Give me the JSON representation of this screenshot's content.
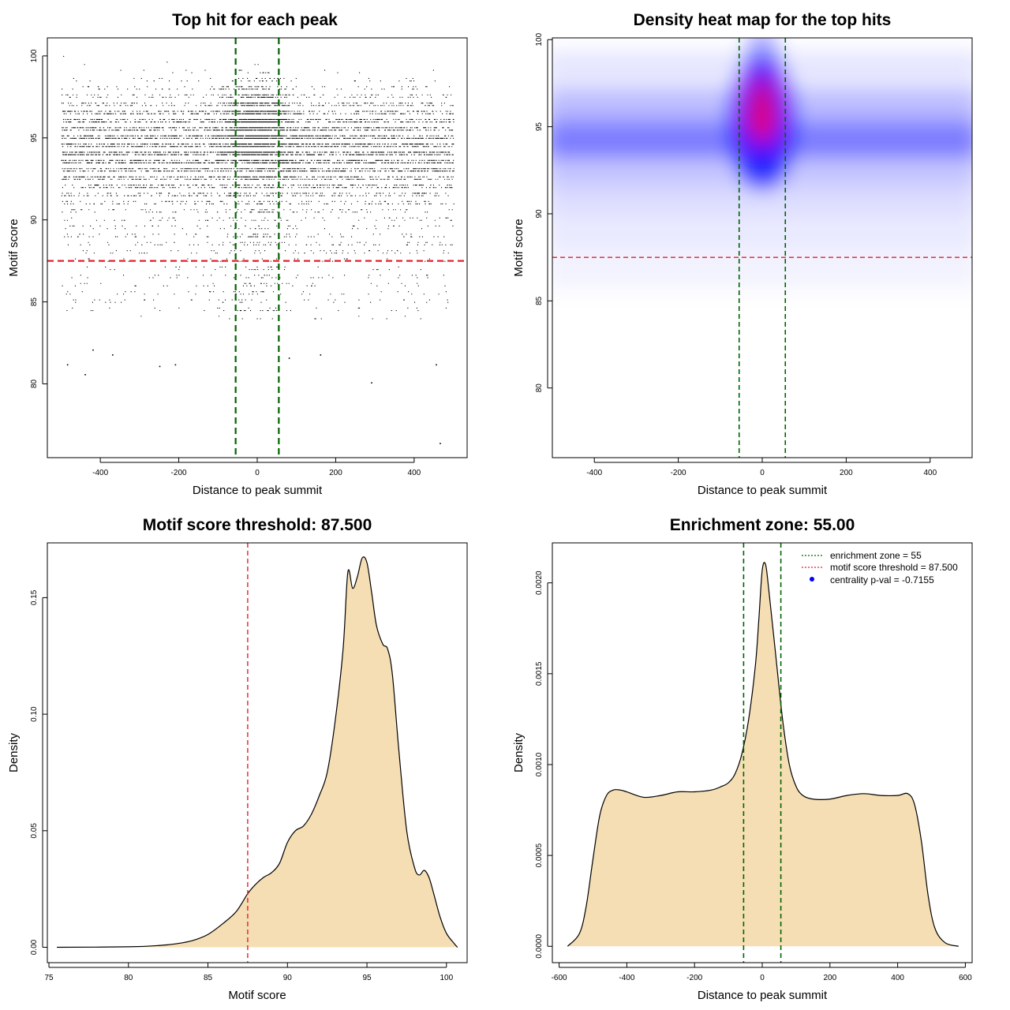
{
  "colors": {
    "density_fill": "#F5DEB3",
    "zone_line": "#006400",
    "threshold_line": "#E0202A",
    "point": "#000000",
    "heat_low": "#0000FF",
    "heat_high": "#FF0000"
  },
  "chart_data": [
    {
      "id": "scatter",
      "type": "scatter",
      "title": "Top hit for each peak",
      "xlabel": "Distance to peak summit",
      "ylabel": "Motif score",
      "xlim": [
        -535,
        535
      ],
      "ylim": [
        75.5,
        101.1
      ],
      "xticks": [
        -400,
        -200,
        0,
        200,
        400
      ],
      "xtick_labels": [
        "-400",
        "-200",
        "0",
        "200",
        "400"
      ],
      "yticks": [
        80,
        85,
        90,
        95,
        100
      ],
      "ytick_labels": [
        "80",
        "85",
        "90",
        "95",
        "100"
      ],
      "zone_lines_x": [
        -55,
        55
      ],
      "threshold_y": 87.5,
      "x_range": [
        -500,
        500
      ],
      "score_range": [
        76.2,
        100
      ],
      "sample_outliers": [
        {
          "x": -485,
          "y": 81.2
        },
        {
          "x": -420,
          "y": 82.1
        },
        {
          "x": -370,
          "y": 81.8
        },
        {
          "x": -440,
          "y": 80.6
        },
        {
          "x": -250,
          "y": 81.1
        },
        {
          "x": -210,
          "y": 81.2
        },
        {
          "x": 290,
          "y": 80.1
        },
        {
          "x": 455,
          "y": 81.2
        },
        {
          "x": 465,
          "y": 76.4
        },
        {
          "x": 80,
          "y": 81.6
        },
        {
          "x": 160,
          "y": 81.8
        }
      ]
    },
    {
      "id": "heatmap",
      "type": "heatmap",
      "title": "Density heat map for the top hits",
      "xlabel": "Distance to peak summit",
      "ylabel": "Motif score",
      "xlim": [
        -500,
        500
      ],
      "ylim": [
        76,
        100.1
      ],
      "xticks": [
        -400,
        -200,
        0,
        200,
        400
      ],
      "xtick_labels": [
        "-400",
        "-200",
        "0",
        "200",
        "400"
      ],
      "yticks": [
        80,
        85,
        90,
        95,
        100
      ],
      "ytick_labels": [
        "80",
        "85",
        "90",
        "95",
        "100"
      ],
      "zone_lines_x": [
        -55,
        55
      ],
      "threshold_y": 87.5,
      "hotspot": {
        "x": 0,
        "y": 95.2
      }
    },
    {
      "id": "score_density",
      "type": "area",
      "title": "Motif score threshold: 87.500",
      "xlabel": "Motif score",
      "ylabel": "Density",
      "xlim": [
        74.9,
        101.3
      ],
      "ylim": [
        -0.0066,
        0.1735
      ],
      "xticks": [
        75,
        80,
        85,
        90,
        95,
        100
      ],
      "xtick_labels": [
        "75",
        "80",
        "85",
        "90",
        "95",
        "100"
      ],
      "yticks": [
        0,
        0.05,
        0.1,
        0.15
      ],
      "ytick_labels": [
        "0.00",
        "0.05",
        "0.10",
        "0.15"
      ],
      "threshold_x": 87.5,
      "x": [
        75.5,
        80,
        82,
        83,
        84,
        85,
        86,
        86.8,
        87.5,
        88,
        88.5,
        89,
        89.5,
        90,
        90.5,
        91,
        91.5,
        92,
        92.5,
        93,
        93.5,
        93.8,
        94.1,
        94.4,
        94.7,
        95,
        95.3,
        95.6,
        96,
        96.3,
        96.6,
        97,
        97.5,
        98,
        98.3,
        98.6,
        98.9,
        99.2,
        99.6,
        100,
        100.5,
        100.7
      ],
      "y": [
        0,
        0.0002,
        0.0008,
        0.0015,
        0.0028,
        0.0055,
        0.0105,
        0.0155,
        0.023,
        0.027,
        0.03,
        0.032,
        0.036,
        0.045,
        0.05,
        0.052,
        0.057,
        0.065,
        0.075,
        0.097,
        0.128,
        0.161,
        0.154,
        0.159,
        0.167,
        0.165,
        0.152,
        0.138,
        0.13,
        0.128,
        0.117,
        0.085,
        0.05,
        0.034,
        0.031,
        0.033,
        0.03,
        0.023,
        0.013,
        0.006,
        0.0015,
        0
      ]
    },
    {
      "id": "distance_density",
      "type": "area",
      "title": "Enrichment zone: 55.00",
      "xlabel": "Distance to peak summit",
      "ylabel": "Density",
      "xlim": [
        -620,
        620
      ],
      "ylim": [
        -9e-05,
        0.00222
      ],
      "xticks": [
        -600,
        -400,
        -200,
        0,
        200,
        400,
        600
      ],
      "xtick_labels": [
        "-600",
        "-400",
        "-200",
        "0",
        "200",
        "400",
        "600"
      ],
      "yticks": [
        0,
        0.0005,
        0.001,
        0.0015,
        0.002
      ],
      "ytick_labels": [
        "0.0000",
        "0.0005",
        "0.0010",
        "0.0015",
        "0.0020"
      ],
      "zone_lines_x": [
        -55,
        55
      ],
      "x": [
        -575,
        -540,
        -520,
        -500,
        -480,
        -460,
        -440,
        -420,
        -400,
        -350,
        -300,
        -250,
        -200,
        -150,
        -120,
        -100,
        -80,
        -60,
        -40,
        -20,
        -10,
        0,
        10,
        20,
        40,
        60,
        80,
        100,
        120,
        150,
        200,
        250,
        300,
        350,
        400,
        430,
        450,
        470,
        490,
        510,
        540,
        580
      ],
      "y": [
        0,
        7e-05,
        0.00022,
        0.00048,
        0.00072,
        0.00083,
        0.00086,
        0.00086,
        0.00085,
        0.00082,
        0.00083,
        0.00085,
        0.00085,
        0.00086,
        0.00088,
        0.0009,
        0.00095,
        0.00106,
        0.00125,
        0.00155,
        0.0018,
        0.00207,
        0.0021,
        0.00195,
        0.0016,
        0.00125,
        0.001,
        0.00088,
        0.00083,
        0.00081,
        0.00081,
        0.00083,
        0.00084,
        0.00083,
        0.00083,
        0.00084,
        0.00078,
        0.00058,
        0.00028,
        0.0001,
        2e-05,
        0
      ],
      "legend": [
        {
          "label": "enrichment zone = 55",
          "style": "dotted-line",
          "color": "#006400"
        },
        {
          "label": "motif score threshold = 87.500",
          "style": "dotted-line",
          "color": "#E0202A"
        },
        {
          "label": "centrality p-val = -0.7155",
          "style": "point",
          "color": "#0000FF"
        }
      ],
      "legend_position": "top-right"
    }
  ]
}
